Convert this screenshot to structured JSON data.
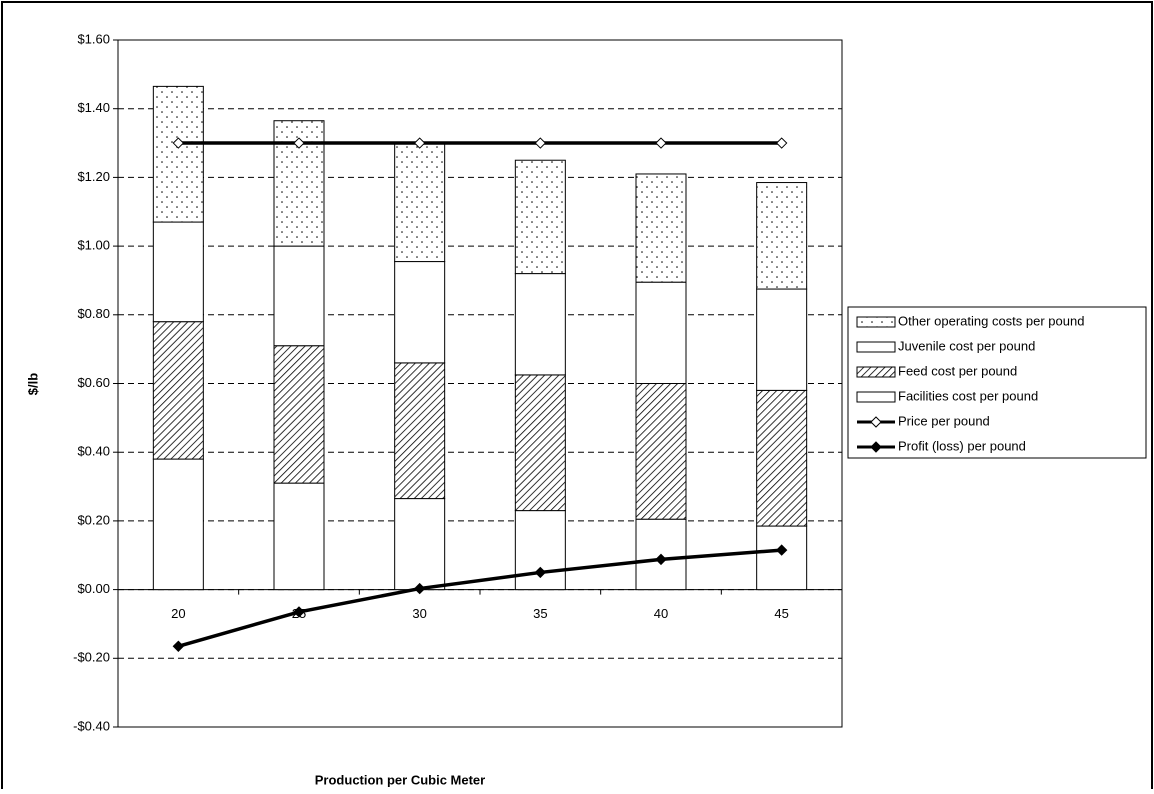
{
  "chart_data": {
    "type": "stacked-bar-line",
    "x_label": "Production per Cubic Meter",
    "y_label": "$/lb",
    "categories": [
      "20",
      "25",
      "30",
      "35",
      "40",
      "45"
    ],
    "series": [
      {
        "name": "Facilities cost per pound",
        "kind": "bar",
        "color": "#ffffff",
        "pattern": "none",
        "values": [
          0.38,
          0.31,
          0.265,
          0.23,
          0.205,
          0.185
        ]
      },
      {
        "name": "Feed cost per pound",
        "kind": "bar",
        "color": "#ffffff",
        "pattern": "hatch",
        "values": [
          0.4,
          0.4,
          0.395,
          0.395,
          0.395,
          0.395
        ]
      },
      {
        "name": "Juvenile cost per pound",
        "kind": "bar",
        "color": "#ffffff",
        "pattern": "none",
        "values": [
          0.29,
          0.29,
          0.295,
          0.295,
          0.295,
          0.295
        ]
      },
      {
        "name": "Other operating costs per pound",
        "kind": "bar",
        "color": "#ffffff",
        "pattern": "dots",
        "values": [
          0.395,
          0.365,
          0.345,
          0.33,
          0.315,
          0.31
        ]
      },
      {
        "name": "Price per pound",
        "kind": "line",
        "color": "#000000",
        "marker_fill": "#ffffff",
        "values": [
          1.3,
          1.3,
          1.3,
          1.3,
          1.3,
          1.3
        ]
      },
      {
        "name": "Profit (loss) per pound",
        "kind": "line",
        "color": "#000000",
        "marker_fill": "#000000",
        "values": [
          -0.165,
          -0.065,
          0.003,
          0.05,
          0.088,
          0.115
        ]
      }
    ],
    "legend_order": [
      3,
      2,
      1,
      0,
      4,
      5
    ],
    "ylim": [
      -0.4,
      1.6
    ],
    "yticks": [
      {
        "value": -0.4,
        "label": "-$0.40"
      },
      {
        "value": -0.2,
        "label": "-$0.20"
      },
      {
        "value": 0,
        "label": "$0.00"
      },
      {
        "value": 0.2,
        "label": "$0.20"
      },
      {
        "value": 0.4,
        "label": "$0.40"
      },
      {
        "value": 0.6,
        "label": "$0.60"
      },
      {
        "value": 0.8,
        "label": "$0.80"
      },
      {
        "value": 1.0,
        "label": "$1.00"
      },
      {
        "value": 1.2,
        "label": "$1.20"
      },
      {
        "value": 1.4,
        "label": "$1.40"
      },
      {
        "value": 1.6,
        "label": "$1.60"
      }
    ],
    "grid": true,
    "legend": "right"
  }
}
